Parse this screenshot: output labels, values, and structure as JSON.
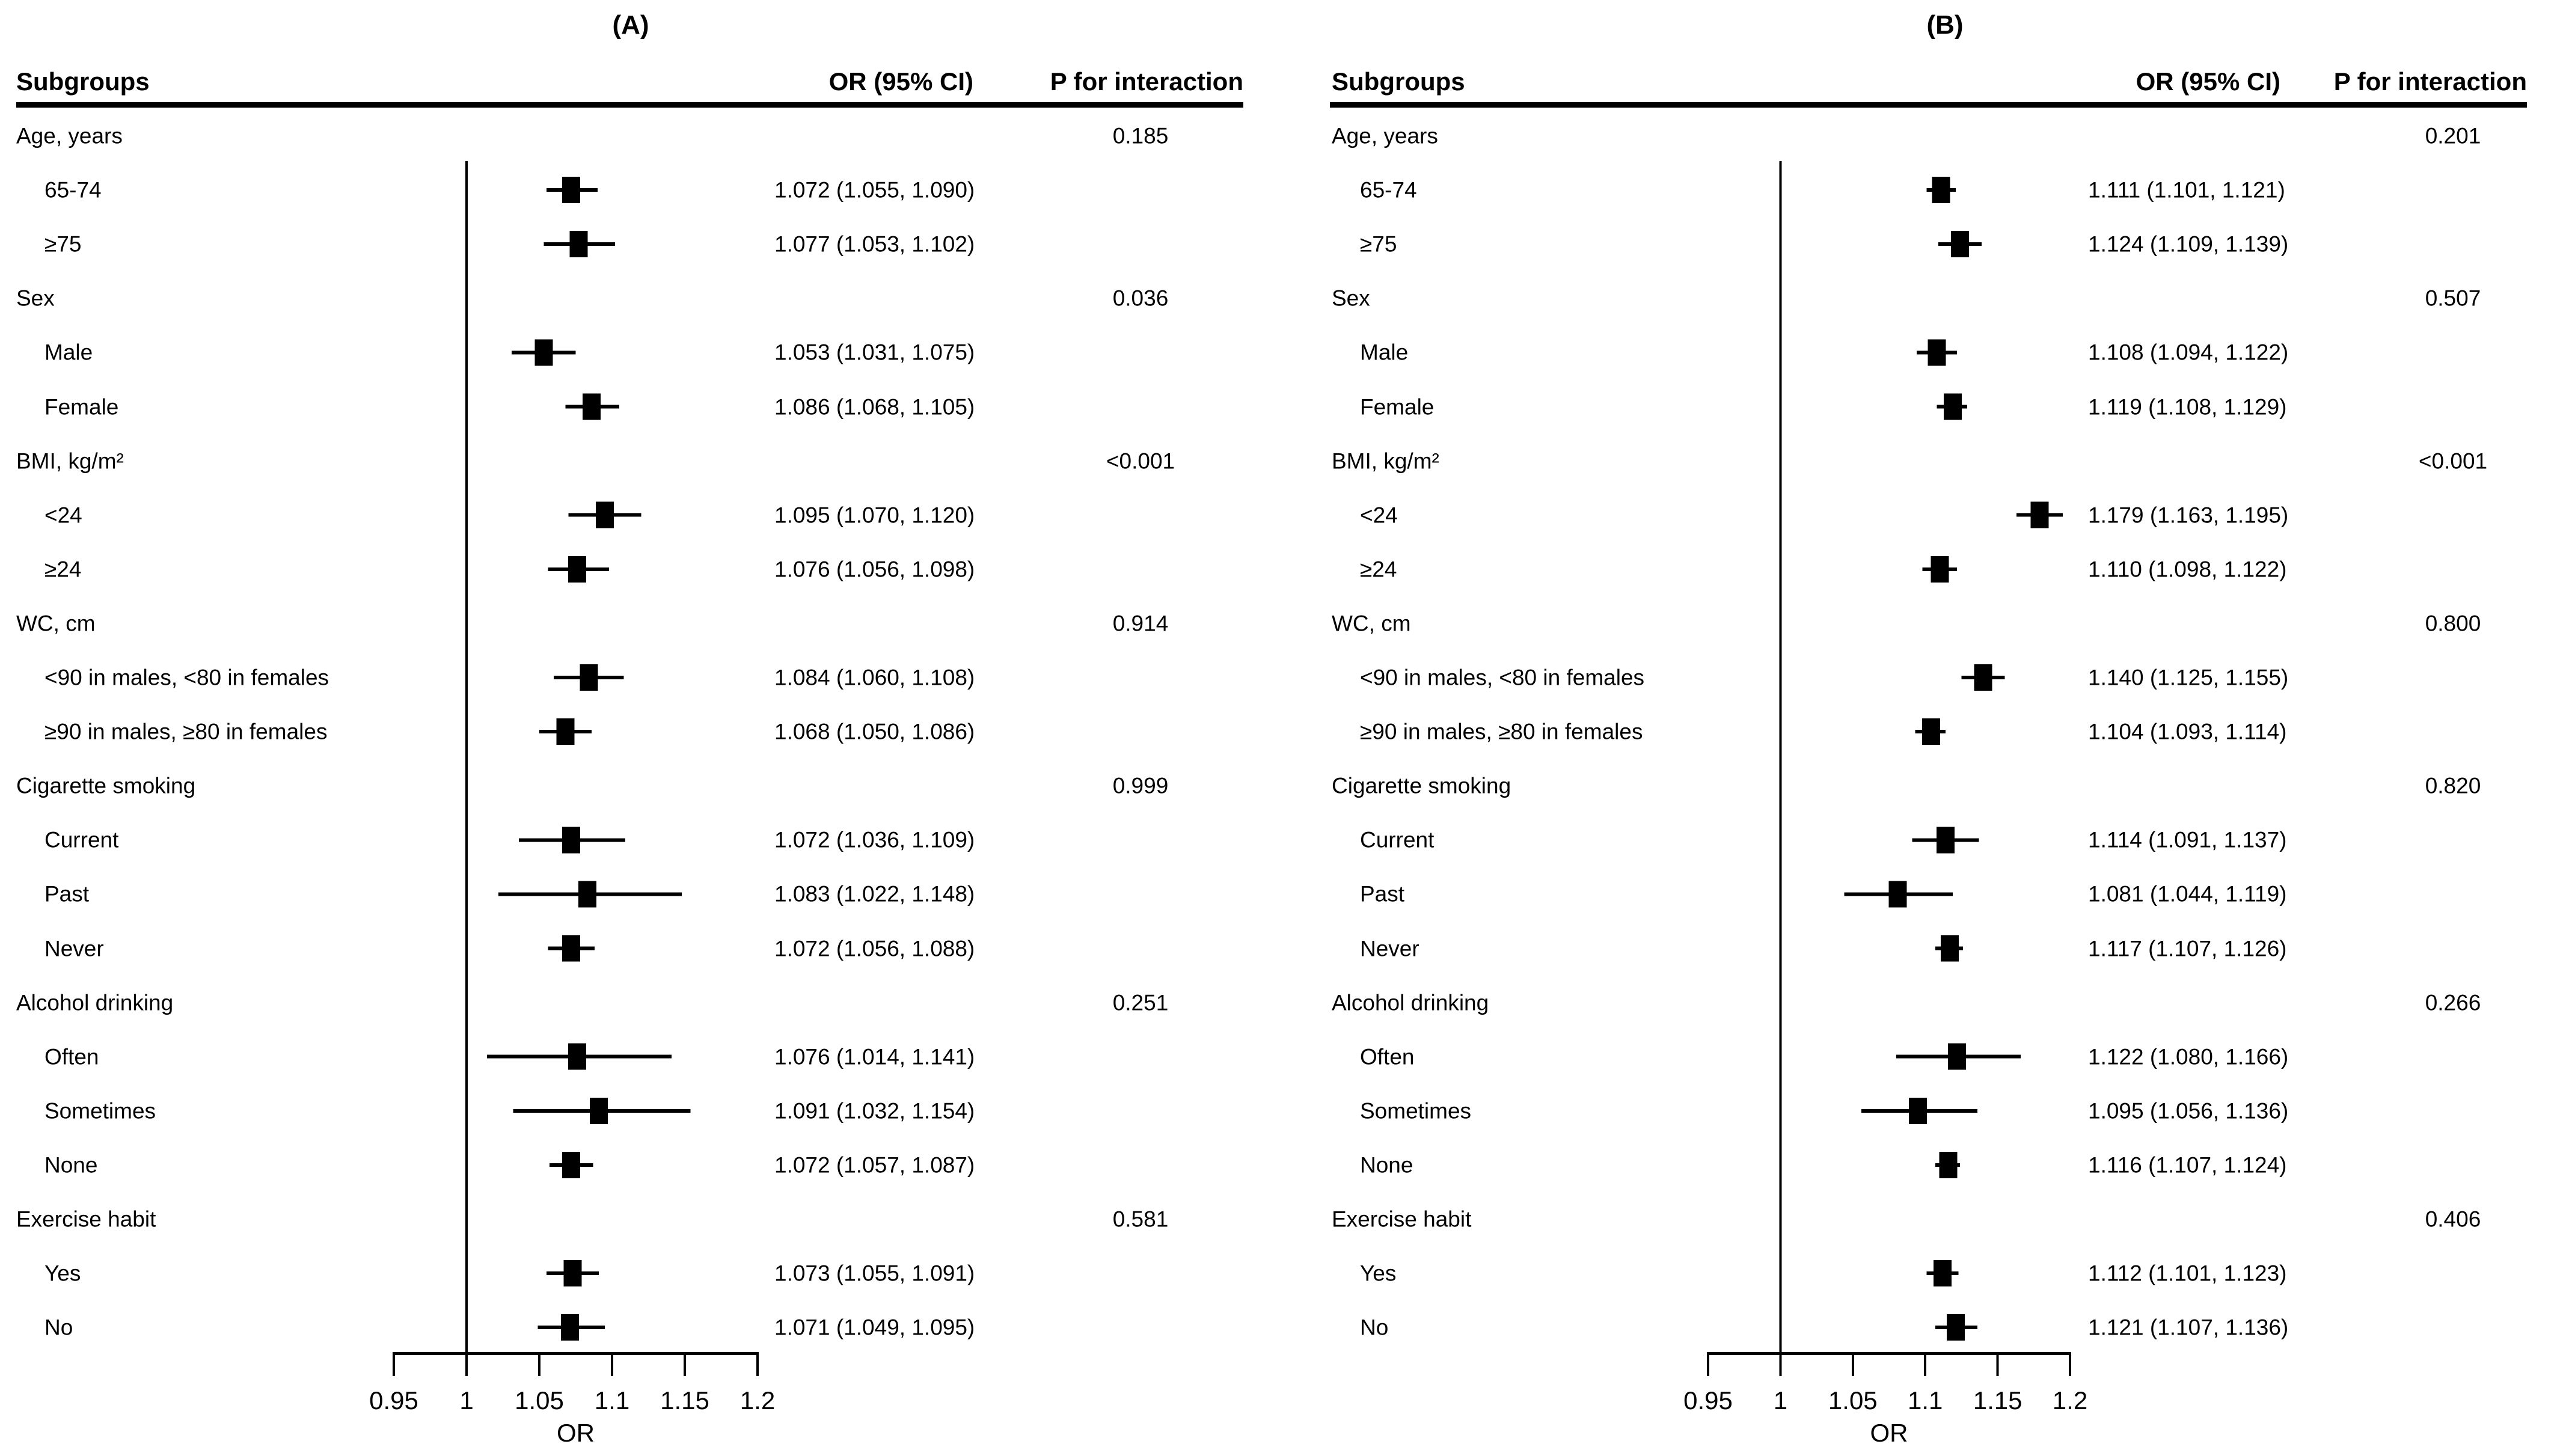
{
  "figure": {
    "background_color": "#ffffff",
    "ink_color": "#000000"
  },
  "chart_data": {
    "type": "forest",
    "legend": "none",
    "grid": false,
    "panels": [
      {
        "title": "(A)",
        "columns": {
          "subgroups": "Subgroups",
          "or_ci": "OR (95% CI)",
          "p_interaction": "P for interaction"
        },
        "axis": {
          "label": "OR",
          "tick_labels": [
            "0.95",
            "1",
            "1.05",
            "1.1",
            "1.15",
            "1.2"
          ],
          "tick_values": [
            0.95,
            1,
            1.05,
            1.1,
            1.15,
            1.2
          ],
          "range": [
            0.95,
            1.2
          ],
          "reference_line": 1
        },
        "groups": [
          {
            "label": "Age, years",
            "p_interaction": "0.185",
            "items": [
              {
                "label": "65-74",
                "or": 1.072,
                "ci_low": 1.055,
                "ci_high": 1.09,
                "or_ci_text": "1.072 (1.055, 1.090)"
              },
              {
                "label": "≥75",
                "or": 1.077,
                "ci_low": 1.053,
                "ci_high": 1.102,
                "or_ci_text": "1.077 (1.053, 1.102)"
              }
            ]
          },
          {
            "label": "Sex",
            "p_interaction": "0.036",
            "items": [
              {
                "label": "Male",
                "or": 1.053,
                "ci_low": 1.031,
                "ci_high": 1.075,
                "or_ci_text": "1.053 (1.031, 1.075)"
              },
              {
                "label": "Female",
                "or": 1.086,
                "ci_low": 1.068,
                "ci_high": 1.105,
                "or_ci_text": "1.086 (1.068, 1.105)"
              }
            ]
          },
          {
            "label": "BMI, kg/m²",
            "p_interaction": "<0.001",
            "items": [
              {
                "label": "<24",
                "or": 1.095,
                "ci_low": 1.07,
                "ci_high": 1.12,
                "or_ci_text": "1.095 (1.070, 1.120)"
              },
              {
                "label": "≥24",
                "or": 1.076,
                "ci_low": 1.056,
                "ci_high": 1.098,
                "or_ci_text": "1.076 (1.056, 1.098)"
              }
            ]
          },
          {
            "label": "WC, cm",
            "p_interaction": "0.914",
            "items": [
              {
                "label": "<90 in males, <80 in females",
                "or": 1.084,
                "ci_low": 1.06,
                "ci_high": 1.108,
                "or_ci_text": "1.084 (1.060, 1.108)"
              },
              {
                "label": "≥90 in males, ≥80 in females",
                "or": 1.068,
                "ci_low": 1.05,
                "ci_high": 1.086,
                "or_ci_text": "1.068 (1.050, 1.086)"
              }
            ]
          },
          {
            "label": "Cigarette smoking",
            "p_interaction": "0.999",
            "items": [
              {
                "label": "Current",
                "or": 1.072,
                "ci_low": 1.036,
                "ci_high": 1.109,
                "or_ci_text": "1.072 (1.036, 1.109)"
              },
              {
                "label": "Past",
                "or": 1.083,
                "ci_low": 1.022,
                "ci_high": 1.148,
                "or_ci_text": "1.083 (1.022, 1.148)"
              },
              {
                "label": "Never",
                "or": 1.072,
                "ci_low": 1.056,
                "ci_high": 1.088,
                "or_ci_text": "1.072 (1.056, 1.088)"
              }
            ]
          },
          {
            "label": "Alcohol drinking",
            "p_interaction": "0.251",
            "items": [
              {
                "label": "Often",
                "or": 1.076,
                "ci_low": 1.014,
                "ci_high": 1.141,
                "or_ci_text": "1.076 (1.014, 1.141)"
              },
              {
                "label": "Sometimes",
                "or": 1.091,
                "ci_low": 1.032,
                "ci_high": 1.154,
                "or_ci_text": "1.091 (1.032, 1.154)"
              },
              {
                "label": "None",
                "or": 1.072,
                "ci_low": 1.057,
                "ci_high": 1.087,
                "or_ci_text": "1.072 (1.057, 1.087)"
              }
            ]
          },
          {
            "label": "Exercise habit",
            "p_interaction": "0.581",
            "items": [
              {
                "label": "Yes",
                "or": 1.073,
                "ci_low": 1.055,
                "ci_high": 1.091,
                "or_ci_text": "1.073 (1.055, 1.091)"
              },
              {
                "label": "No",
                "or": 1.071,
                "ci_low": 1.049,
                "ci_high": 1.095,
                "or_ci_text": "1.071 (1.049, 1.095)"
              }
            ]
          }
        ]
      },
      {
        "title": "(B)",
        "columns": {
          "subgroups": "Subgroups",
          "or_ci": "OR (95% CI)",
          "p_interaction": "P for interaction"
        },
        "axis": {
          "label": "OR",
          "tick_labels": [
            "0.95",
            "1",
            "1.05",
            "1.1",
            "1.15",
            "1.2"
          ],
          "tick_values": [
            0.95,
            1,
            1.05,
            1.1,
            1.15,
            1.2
          ],
          "range": [
            0.95,
            1.2
          ],
          "reference_line": 1
        },
        "groups": [
          {
            "label": "Age, years",
            "p_interaction": "0.201",
            "items": [
              {
                "label": "65-74",
                "or": 1.111,
                "ci_low": 1.101,
                "ci_high": 1.121,
                "or_ci_text": "1.111 (1.101, 1.121)"
              },
              {
                "label": "≥75",
                "or": 1.124,
                "ci_low": 1.109,
                "ci_high": 1.139,
                "or_ci_text": "1.124 (1.109, 1.139)"
              }
            ]
          },
          {
            "label": "Sex",
            "p_interaction": "0.507",
            "items": [
              {
                "label": "Male",
                "or": 1.108,
                "ci_low": 1.094,
                "ci_high": 1.122,
                "or_ci_text": "1.108 (1.094, 1.122)"
              },
              {
                "label": "Female",
                "or": 1.119,
                "ci_low": 1.108,
                "ci_high": 1.129,
                "or_ci_text": "1.119 (1.108, 1.129)"
              }
            ]
          },
          {
            "label": "BMI, kg/m²",
            "p_interaction": "<0.001",
            "items": [
              {
                "label": "<24",
                "or": 1.179,
                "ci_low": 1.163,
                "ci_high": 1.195,
                "or_ci_text": "1.179 (1.163, 1.195)"
              },
              {
                "label": "≥24",
                "or": 1.11,
                "ci_low": 1.098,
                "ci_high": 1.122,
                "or_ci_text": "1.110 (1.098, 1.122)"
              }
            ]
          },
          {
            "label": "WC, cm",
            "p_interaction": "0.800",
            "items": [
              {
                "label": "<90 in males, <80 in females",
                "or": 1.14,
                "ci_low": 1.125,
                "ci_high": 1.155,
                "or_ci_text": "1.140 (1.125, 1.155)"
              },
              {
                "label": "≥90 in males, ≥80 in females",
                "or": 1.104,
                "ci_low": 1.093,
                "ci_high": 1.114,
                "or_ci_text": "1.104 (1.093, 1.114)"
              }
            ]
          },
          {
            "label": "Cigarette smoking",
            "p_interaction": "0.820",
            "items": [
              {
                "label": "Current",
                "or": 1.114,
                "ci_low": 1.091,
                "ci_high": 1.137,
                "or_ci_text": "1.114 (1.091, 1.137)"
              },
              {
                "label": "Past",
                "or": 1.081,
                "ci_low": 1.044,
                "ci_high": 1.119,
                "or_ci_text": "1.081 (1.044, 1.119)"
              },
              {
                "label": "Never",
                "or": 1.117,
                "ci_low": 1.107,
                "ci_high": 1.126,
                "or_ci_text": "1.117 (1.107, 1.126)"
              }
            ]
          },
          {
            "label": "Alcohol drinking",
            "p_interaction": "0.266",
            "items": [
              {
                "label": "Often",
                "or": 1.122,
                "ci_low": 1.08,
                "ci_high": 1.166,
                "or_ci_text": "1.122 (1.080, 1.166)"
              },
              {
                "label": "Sometimes",
                "or": 1.095,
                "ci_low": 1.056,
                "ci_high": 1.136,
                "or_ci_text": "1.095 (1.056, 1.136)"
              },
              {
                "label": "None",
                "or": 1.116,
                "ci_low": 1.107,
                "ci_high": 1.124,
                "or_ci_text": "1.116 (1.107, 1.124)"
              }
            ]
          },
          {
            "label": "Exercise habit",
            "p_interaction": "0.406",
            "items": [
              {
                "label": "Yes",
                "or": 1.112,
                "ci_low": 1.101,
                "ci_high": 1.123,
                "or_ci_text": "1.112 (1.101, 1.123)"
              },
              {
                "label": "No",
                "or": 1.121,
                "ci_low": 1.107,
                "ci_high": 1.136,
                "or_ci_text": "1.121 (1.107, 1.136)"
              }
            ]
          }
        ]
      }
    ]
  }
}
